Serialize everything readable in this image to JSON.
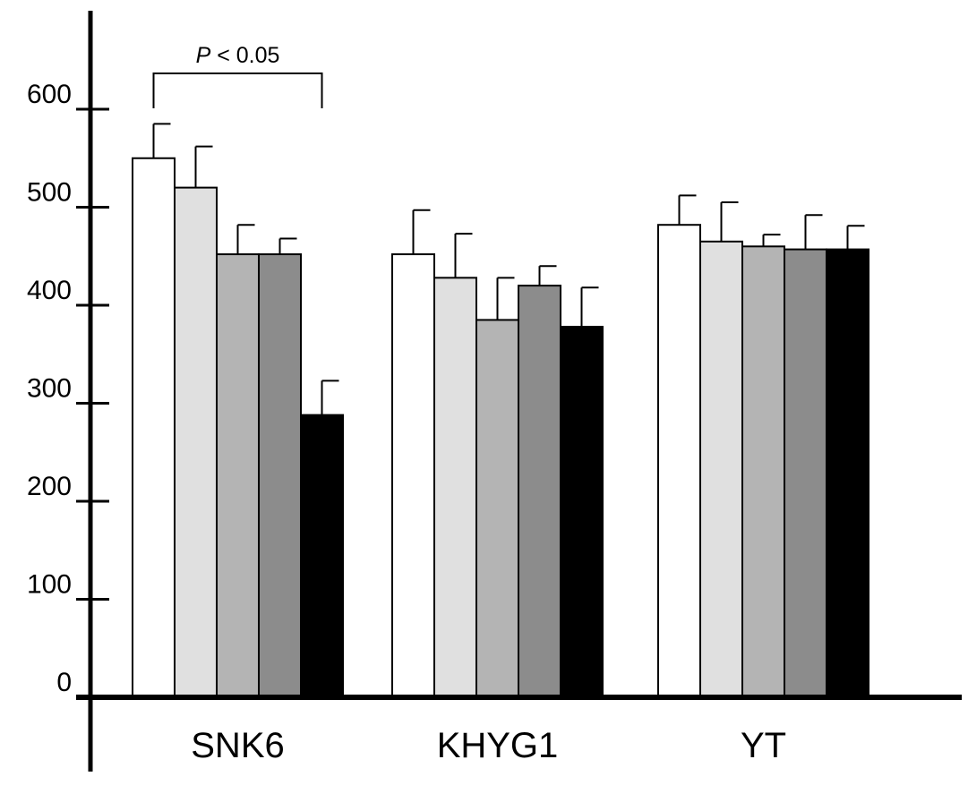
{
  "chart_data": {
    "type": "bar",
    "title": "",
    "xlabel": "",
    "ylabel": "",
    "categories": [
      "SNK6",
      "KHYG1",
      "YT"
    ],
    "series": [
      {
        "values": [
          550,
          452,
          482
        ],
        "errors": [
          35,
          45,
          30
        ]
      },
      {
        "values": [
          520,
          428,
          465
        ],
        "errors": [
          42,
          45,
          40
        ]
      },
      {
        "values": [
          452,
          385,
          460
        ],
        "errors": [
          30,
          43,
          12
        ]
      },
      {
        "values": [
          452,
          420,
          457
        ],
        "errors": [
          16,
          20,
          35
        ]
      },
      {
        "values": [
          288,
          378,
          457
        ],
        "errors": [
          35,
          40,
          24
        ]
      }
    ],
    "ylim": [
      0,
      600
    ],
    "yticks": [
      0,
      100,
      200,
      300,
      400,
      500,
      600
    ],
    "grid": false,
    "legend": "none",
    "series_colors": [
      "#ffffff",
      "#e0e0e0",
      "#b4b4b4",
      "#8c8c8c",
      "#000000"
    ],
    "annotation": {
      "italic_part": "P",
      "rest": " < 0.05",
      "category": "SNK6",
      "from_series": 0,
      "to_series": 4
    }
  }
}
